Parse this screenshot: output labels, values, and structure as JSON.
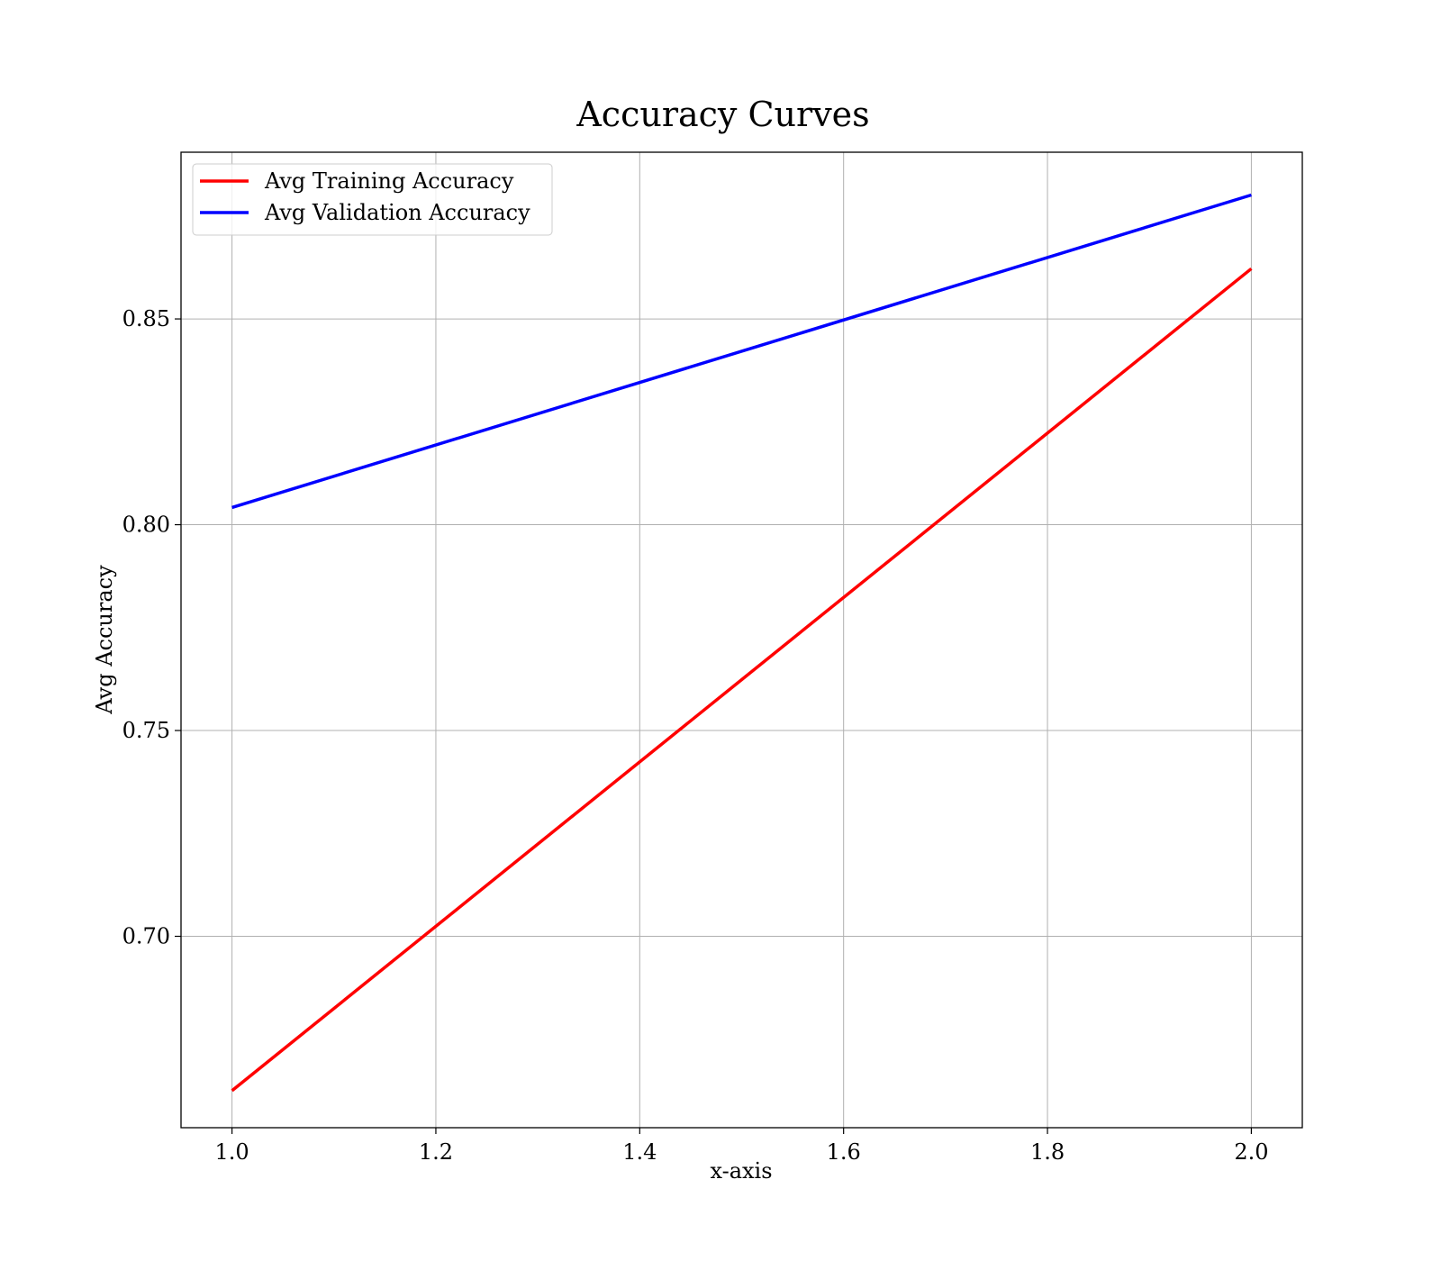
{
  "chart_data": {
    "type": "line",
    "title": "Accuracy Curves",
    "xlabel": "x-axis",
    "ylabel": "Avg Accuracy",
    "xlim": [
      0.95,
      2.05
    ],
    "ylim": [
      0.6535,
      0.8905
    ],
    "xticks": [
      1.0,
      1.2,
      1.4,
      1.6,
      1.8,
      2.0
    ],
    "xtick_labels": [
      "1.0",
      "1.2",
      "1.4",
      "1.6",
      "1.8",
      "2.0"
    ],
    "yticks": [
      0.7,
      0.75,
      0.8,
      0.85
    ],
    "ytick_labels": [
      "0.70",
      "0.75",
      "0.80",
      "0.85"
    ],
    "grid": true,
    "legend_position": "top-left",
    "series": [
      {
        "name": "Avg Training Accuracy",
        "color": "#ff0000",
        "x": [
          1.0,
          2.0
        ],
        "y": [
          0.6625,
          0.8622
        ]
      },
      {
        "name": "Avg Validation Accuracy",
        "color": "#0000ff",
        "x": [
          1.0,
          2.0
        ],
        "y": [
          0.8042,
          0.8801
        ]
      }
    ]
  }
}
